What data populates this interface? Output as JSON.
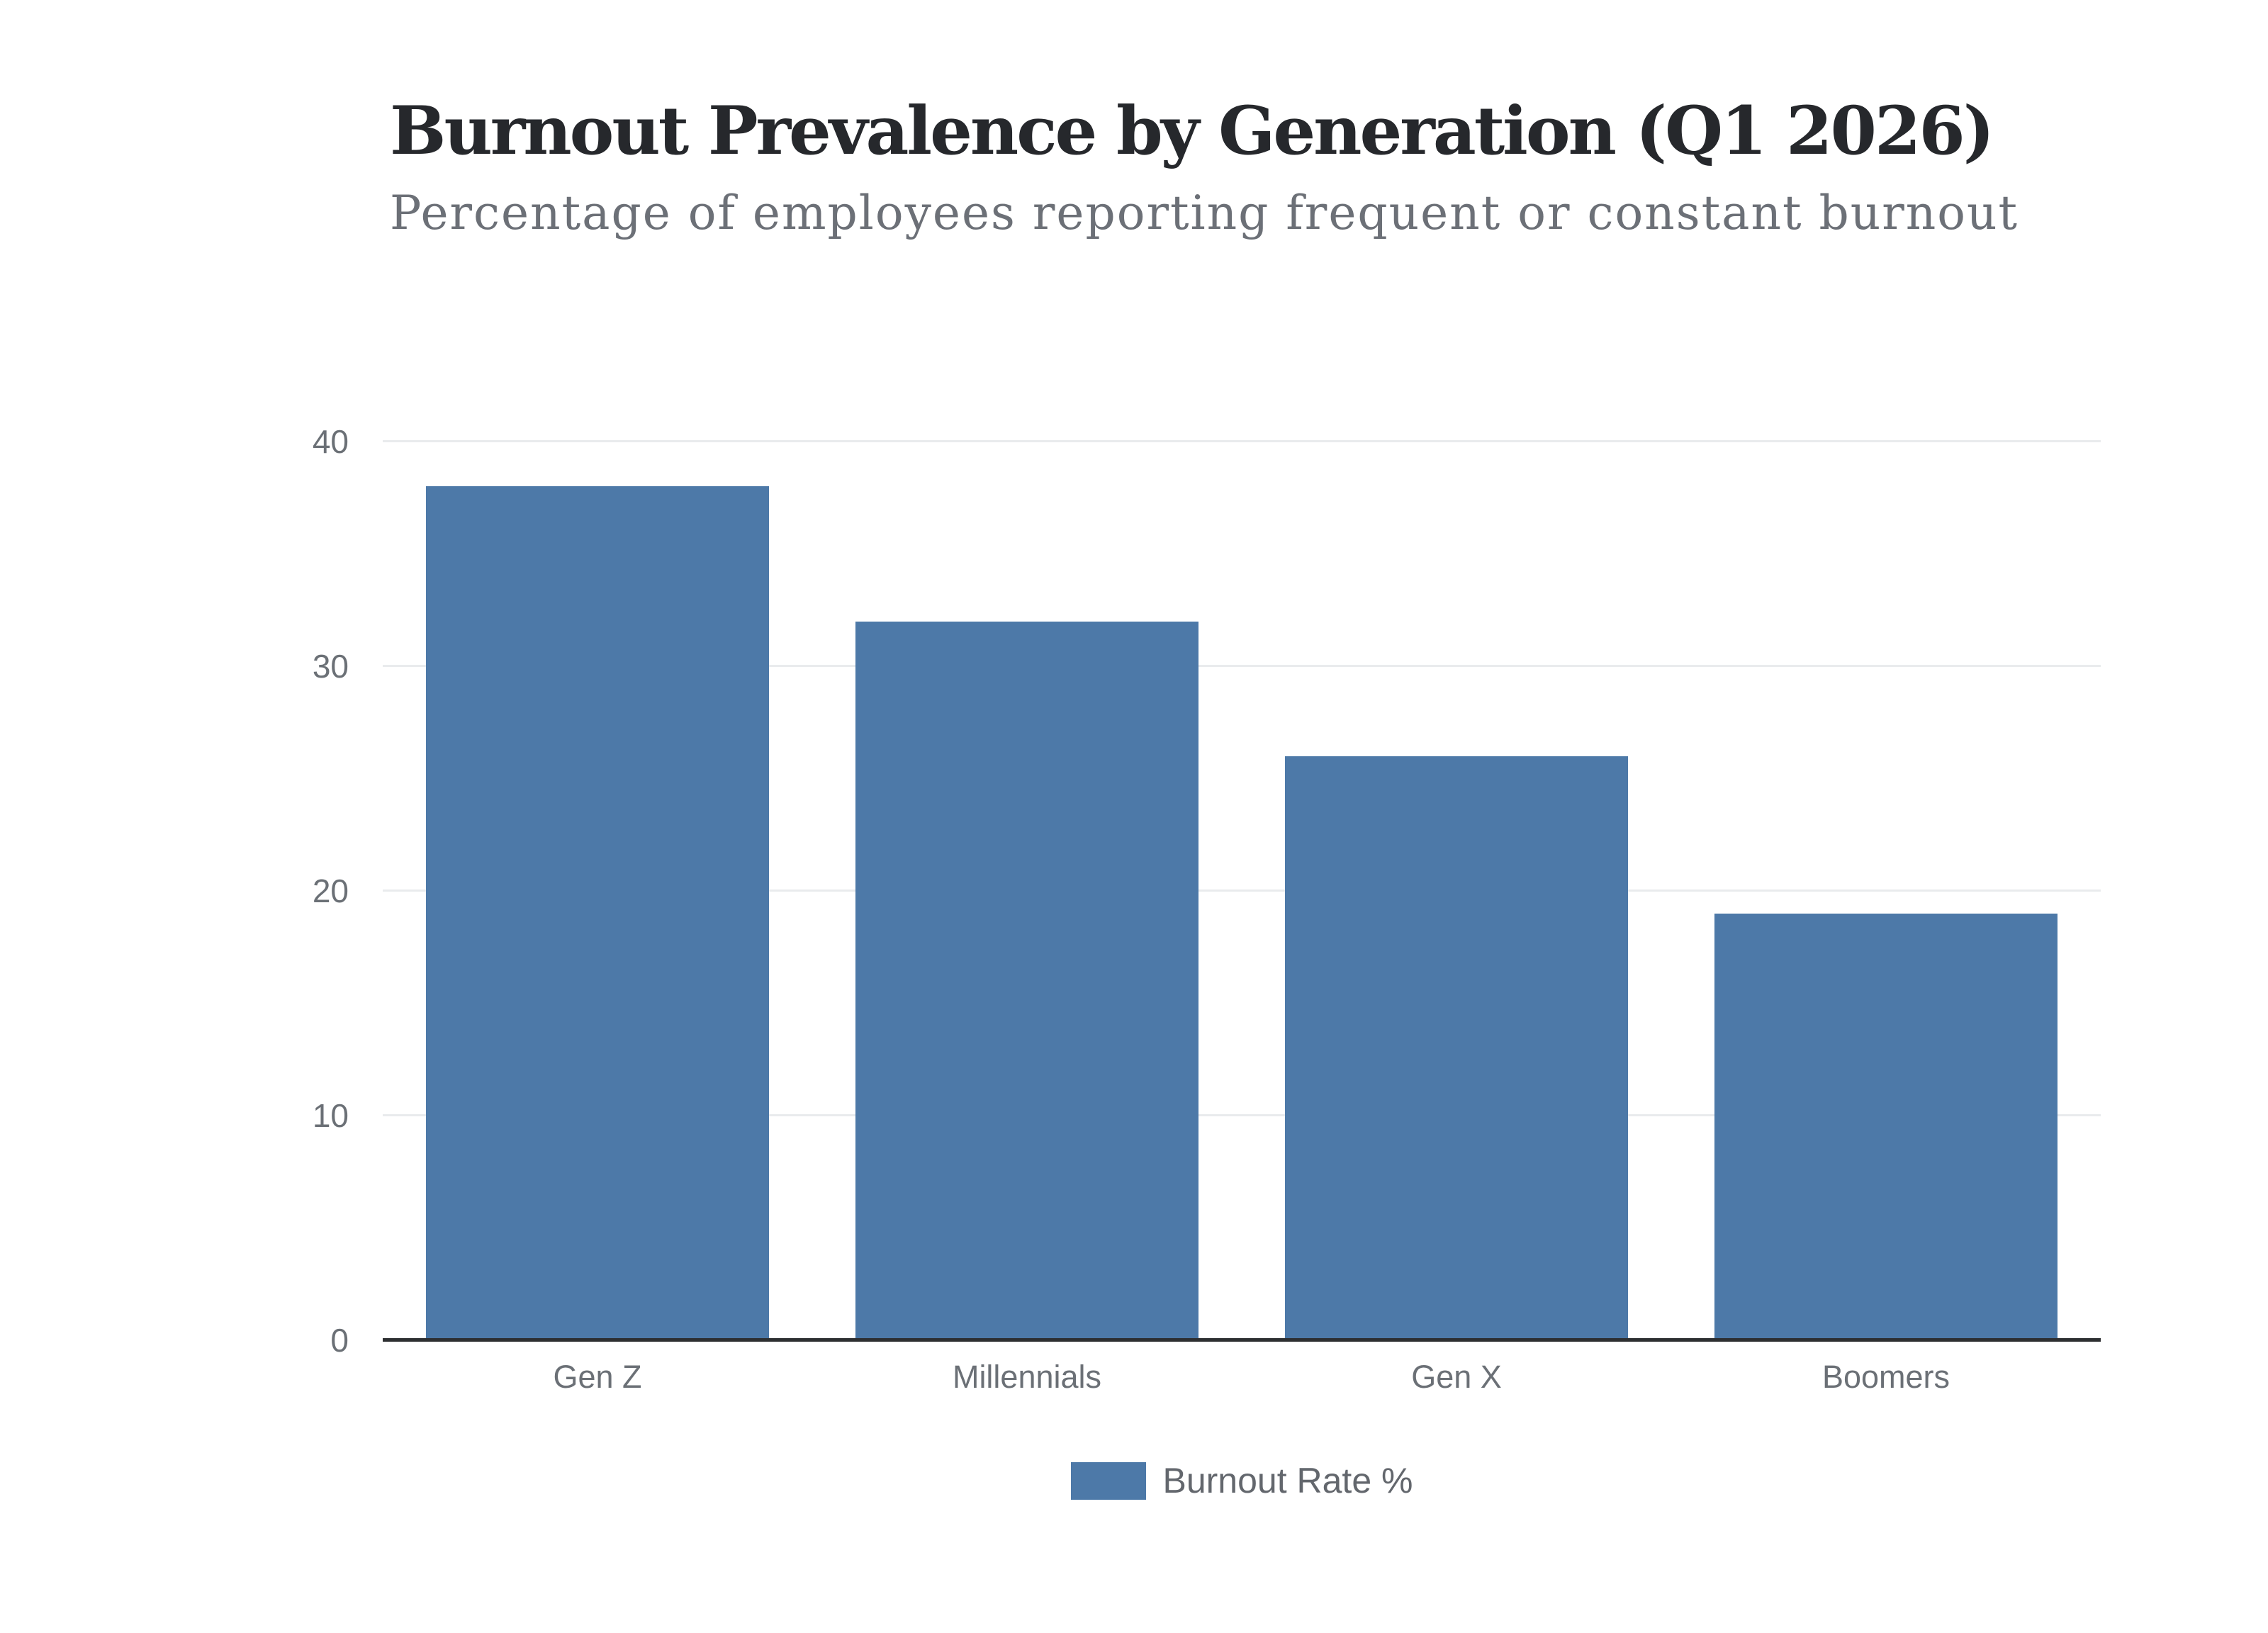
{
  "chart_data": {
    "type": "bar",
    "title": "Burnout Prevalence by Generation (Q1 2026)",
    "subtitle": "Percentage of employees reporting frequent or constant burnout",
    "categories": [
      "Gen Z",
      "Millennials",
      "Gen X",
      "Boomers"
    ],
    "series": [
      {
        "name": "Burnout Rate %",
        "values": [
          38,
          32,
          26,
          19
        ],
        "color": "#4d79a8"
      }
    ],
    "xlabel": "",
    "ylabel": "",
    "ylim": [
      0,
      40
    ],
    "yticks": [
      0,
      10,
      20,
      30,
      40
    ],
    "grid": true,
    "grid_color": "#e9ebed",
    "legend_position": "bottom",
    "legend": [
      "Burnout Rate %"
    ]
  },
  "colors": {
    "bar": "#4d79a8",
    "gridline": "#e9ebed",
    "axis_line": "#2d2f31",
    "axis_labels": "#6b7076",
    "title": "#26282c",
    "subtitle": "#6c7077",
    "background": "#ffffff"
  }
}
